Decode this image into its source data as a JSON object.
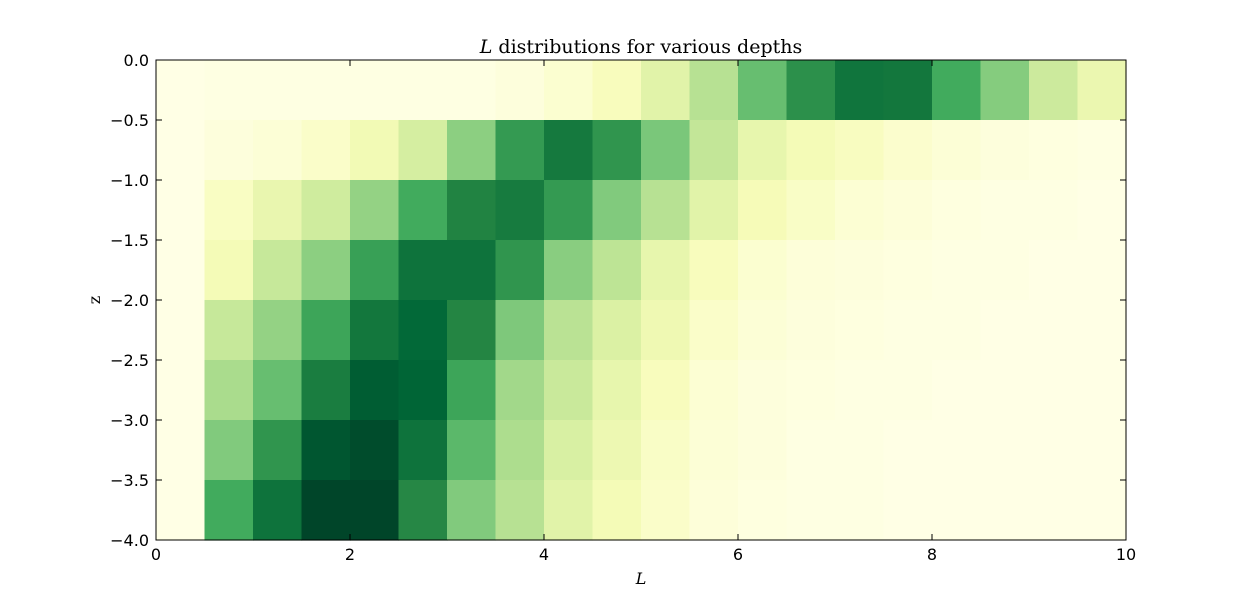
{
  "chart_data": {
    "type": "heatmap",
    "title_math": "L",
    "title_rest": " distributions for various depths",
    "xlabel": "L",
    "ylabel": "z",
    "xlim": [
      0,
      10
    ],
    "ylim": [
      -4.0,
      0.0
    ],
    "xticks": [
      0,
      2,
      4,
      6,
      8,
      10
    ],
    "xtick_labels": [
      "0",
      "2",
      "4",
      "6",
      "8",
      "10"
    ],
    "yticks": [
      0.0,
      -0.5,
      -1.0,
      -1.5,
      -2.0,
      -2.5,
      -3.0,
      -3.5,
      -4.0
    ],
    "ytick_labels": [
      "0.0",
      "−0.5",
      "−1.0",
      "−1.5",
      "−2.0",
      "−2.5",
      "−3.0",
      "−3.5",
      "−4.0"
    ],
    "x_edges": [
      0,
      0.5,
      1,
      1.5,
      2,
      2.5,
      3,
      3.5,
      4,
      4.5,
      5,
      5.5,
      6,
      6.5,
      7,
      7.5,
      8,
      8.5,
      9,
      9.5,
      10
    ],
    "z_edges": [
      0.0,
      -0.5,
      -1.0,
      -1.5,
      -2.0,
      -2.5,
      -3.0,
      -3.5,
      -4.0
    ],
    "colormap": "Greens-Yellow",
    "colormap_stops": [
      "#ffffe5",
      "#f7fcb9",
      "#d9f0a3",
      "#addd8e",
      "#78c679",
      "#41ab5d",
      "#238443",
      "#006837",
      "#004529"
    ],
    "values": [
      [
        0.0,
        0.01,
        0.01,
        0.01,
        0.01,
        0.01,
        0.01,
        0.03,
        0.07,
        0.13,
        0.25,
        0.4,
        0.62,
        0.82,
        0.94,
        0.93,
        0.72,
        0.54,
        0.33,
        0.2
      ],
      [
        0.0,
        0.03,
        0.05,
        0.09,
        0.17,
        0.3,
        0.52,
        0.78,
        0.92,
        0.8,
        0.57,
        0.36,
        0.22,
        0.16,
        0.12,
        0.08,
        0.05,
        0.03,
        0.02,
        0.01
      ],
      [
        0.0,
        0.11,
        0.21,
        0.32,
        0.5,
        0.72,
        0.87,
        0.91,
        0.78,
        0.55,
        0.4,
        0.25,
        0.15,
        0.1,
        0.06,
        0.04,
        0.02,
        0.01,
        0.01,
        0.0
      ],
      [
        0.0,
        0.16,
        0.35,
        0.52,
        0.76,
        0.95,
        0.95,
        0.8,
        0.53,
        0.38,
        0.22,
        0.13,
        0.07,
        0.04,
        0.03,
        0.02,
        0.01,
        0.01,
        0.0,
        0.0
      ],
      [
        0.0,
        0.35,
        0.5,
        0.74,
        0.93,
        1.0,
        0.86,
        0.56,
        0.39,
        0.28,
        0.18,
        0.09,
        0.05,
        0.03,
        0.02,
        0.01,
        0.01,
        0.0,
        0.0,
        0.0
      ],
      [
        0.0,
        0.44,
        0.62,
        0.9,
        1.05,
        1.02,
        0.74,
        0.46,
        0.34,
        0.22,
        0.13,
        0.06,
        0.03,
        0.02,
        0.01,
        0.01,
        0.0,
        0.0,
        0.0,
        0.0
      ],
      [
        0.0,
        0.55,
        0.8,
        1.08,
        1.12,
        0.95,
        0.65,
        0.43,
        0.29,
        0.19,
        0.1,
        0.05,
        0.03,
        0.01,
        0.01,
        0.0,
        0.0,
        0.0,
        0.0,
        0.0
      ],
      [
        0.0,
        0.72,
        0.95,
        1.15,
        1.15,
        0.85,
        0.55,
        0.4,
        0.25,
        0.16,
        0.09,
        0.04,
        0.02,
        0.01,
        0.01,
        0.0,
        0.0,
        0.0,
        0.0,
        0.0
      ]
    ],
    "vmax": 1.15,
    "grid": false,
    "legend": "none"
  }
}
